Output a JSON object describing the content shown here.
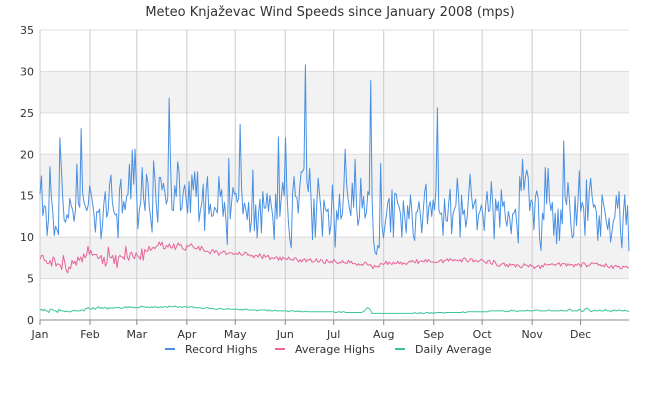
{
  "chart_data": {
    "type": "line",
    "title": "Meteo Knjaževac Wind Speeds since January 2008 (mps)",
    "xlabel": "",
    "ylabel": "",
    "x_ticks": [
      "Jan",
      "Feb",
      "Mar",
      "Apr",
      "May",
      "Jun",
      "Jul",
      "Aug",
      "Sep",
      "Oct",
      "Nov",
      "Dec"
    ],
    "x_tick_days": [
      1,
      32,
      61,
      92,
      122,
      153,
      183,
      214,
      245,
      275,
      306,
      336
    ],
    "xlim_days": [
      1,
      366
    ],
    "ylim": [
      0,
      35
    ],
    "y_ticks": [
      0,
      5,
      10,
      15,
      20,
      25,
      30,
      35
    ],
    "grid": true,
    "legend": "bottom",
    "series": [
      {
        "name": "Record Highs",
        "color": "#4a90e2",
        "values": [
          15.2,
          17.4,
          12.6,
          13.8,
          13.6,
          10.2,
          12.2,
          18.5,
          14.8,
          13.1,
          10.2,
          11.3,
          10.9,
          10.3,
          22.0,
          18.5,
          14.8,
          12.1,
          11.8,
          12.7,
          12.3,
          14.7,
          13.8,
          13.3,
          11.9,
          13.3,
          18.8,
          14.1,
          13.6,
          23.1,
          15.4,
          14.2,
          13.7,
          13.2,
          13.9,
          16.2,
          15.3,
          14.1,
          12.8,
          10.6,
          13.1,
          13.0,
          13.4,
          9.8,
          11.4,
          14.1,
          15.5,
          12.4,
          13.1,
          16.3,
          17.5,
          14.2,
          13.1,
          12.7,
          12.8,
          9.9,
          15.7,
          17.0,
          12.9,
          14.3,
          13.3,
          14.9,
          15.2,
          18.8,
          14.6,
          20.5,
          16.4,
          20.6,
          15.7,
          11.0,
          13.3,
          14.3,
          18.4,
          14.7,
          13.2,
          17.6,
          16.6,
          13.6,
          12.3,
          10.6,
          19.2,
          17.0,
          13.8,
          11.8,
          17.2,
          17.2,
          15.7,
          16.5,
          15.4,
          14.0,
          14.7,
          26.8,
          18.6,
          13.3,
          13.2,
          16.2,
          14.9,
          19.1,
          17.9,
          13.2,
          13.5,
          15.6,
          16.3,
          14.5,
          12.9,
          16.7,
          13.0,
          17.5,
          15.7,
          17.9,
          14.9,
          17.9,
          11.9,
          13.2,
          14.1,
          16.4,
          10.8,
          15.5,
          17.3,
          12.8,
          14.0,
          12.5,
          12.6,
          13.6,
          13.3,
          12.9,
          17.3,
          14.9,
          15.7,
          12.5,
          14.2,
          12.1,
          9.1,
          19.5,
          12.2,
          14.2,
          16.0,
          15.2,
          15.3,
          14.2,
          14.7,
          23.6,
          16.1,
          12.8,
          14.1,
          13.4,
          12.1,
          14.2,
          10.6,
          12.0,
          18.1,
          10.8,
          13.9,
          9.9,
          12.9,
          14.6,
          10.5,
          15.5,
          13.5,
          13.5,
          15.3,
          13.1,
          15.0,
          13.8,
          12.5,
          9.7,
          15.2,
          12.2,
          22.1,
          12.5,
          14.7,
          16.6,
          15.0,
          22.0,
          15.4,
          11.9,
          9.8,
          8.7,
          15.3,
          17.3,
          14.9,
          14.8,
          12.9,
          16.0,
          17.9,
          17.9,
          18.3,
          30.8,
          16.8,
          15.5,
          18.3,
          14.6,
          9.7,
          14.6,
          10.0,
          13.9,
          17.1,
          15.1,
          13.3,
          10.1,
          14.5,
          13.4,
          13.1,
          13.4,
          10.3,
          11.5,
          16.3,
          13.4,
          8.8,
          13.2,
          12.1,
          15.2,
          12.2,
          12.7,
          15.6,
          20.6,
          16.5,
          14.7,
          13.5,
          12.6,
          16.5,
          13.6,
          19.4,
          13.9,
          11.4,
          12.3,
          17.1,
          13.5,
          14.9,
          12.3,
          13.0,
          15.5,
          15.1,
          28.9,
          14.6,
          9.6,
          8.2,
          7.9,
          9.0,
          8.7,
          18.9,
          11.3,
          9.9,
          11.3,
          12.6,
          14.1,
          14.7,
          10.6,
          15.7,
          10.0,
          15.3,
          15.2,
          14.1,
          13.7,
          12.8,
          10.0,
          14.4,
          12.4,
          10.5,
          13.8,
          12.2,
          15.1,
          13.1,
          10.2,
          9.6,
          13.0,
          13.1,
          14.3,
          12.7,
          10.5,
          13.1,
          15.4,
          16.4,
          11.6,
          13.7,
          14.3,
          12.5,
          14.5,
          13.3,
          15.8,
          25.6,
          13.3,
          12.8,
          12.9,
          10.2,
          14.6,
          12.1,
          11.9,
          14.2,
          15.8,
          10.4,
          12.8,
          13.4,
          13.8,
          17.1,
          14.8,
          10.0,
          15.1,
          12.7,
          13.3,
          11.2,
          12.4,
          15.0,
          17.6,
          15.1,
          13.4,
          14.1,
          14.6,
          10.9,
          12.7,
          13.1,
          13.9,
          12.8,
          10.8,
          13.8,
          15.5,
          13.1,
          13.2,
          16.7,
          14.0,
          9.8,
          14.6,
          13.2,
          14.3,
          11.2,
          15.7,
          13.7,
          14.3,
          12.2,
          11.3,
          13.1,
          12.2,
          10.4,
          12.8,
          12.9,
          13.4,
          11.4,
          9.3,
          17.3,
          15.6,
          19.4,
          15.7,
          17.2,
          18.1,
          17.2,
          13.2,
          14.5,
          14.2,
          10.9,
          14.8,
          15.6,
          14.7,
          9.8,
          8.4,
          12.9,
          12.1,
          18.4,
          14.0,
          18.3,
          14.5,
          13.2,
          14.2,
          10.2,
          12.9,
          9.2,
          13.4,
          9.6,
          13.3,
          11.6,
          21.6,
          14.8,
          13.9,
          16.6,
          14.5,
          11.6,
          9.9,
          10.2,
          14.9,
          11.4,
          14.2,
          18.0,
          13.1,
          14.2,
          13.6,
          10.2,
          16.9,
          12.0,
          15.5,
          17.1,
          14.9,
          13.6,
          13.9,
          13.0,
          9.6,
          12.6,
          10.1,
          15.1,
          14.1,
          13.1,
          11.9,
          10.9,
          12.3,
          9.4,
          10.6,
          12.0,
          12.4,
          15.0,
          13.5,
          15.5,
          10.7,
          8.7,
          12.7,
          15.1,
          11.5,
          13.8,
          8.3
        ]
      },
      {
        "name": "Average Highs",
        "color": "#e8649a",
        "values": [
          7.3,
          7.8,
          7.8,
          7.2,
          7.2,
          6.8,
          6.8,
          7.2,
          6.5,
          7.6,
          7.4,
          6.5,
          6.8,
          6.7,
          6.6,
          6.1,
          7.8,
          7.0,
          6.0,
          5.7,
          6.4,
          6.2,
          7.2,
          6.8,
          7.1,
          6.6,
          7.6,
          7.2,
          7.6,
          7.0,
          8.0,
          7.5,
          7.8,
          8.9,
          7.9,
          8.4,
          7.8,
          7.9,
          7.9,
          7.9,
          7.4,
          7.5,
          7.8,
          6.8,
          7.6,
          6.5,
          6.9,
          8.8,
          7.6,
          7.5,
          7.8,
          6.8,
          7.8,
          6.3,
          7.6,
          7.8,
          7.6,
          7.6,
          7.3,
          8.9,
          7.6,
          7.2,
          8.0,
          8.2,
          7.6,
          7.4,
          8.1,
          7.8,
          7.6,
          7.3,
          8.6,
          7.2,
          8.5,
          8.3,
          8.3,
          8.9,
          8.4,
          8.6,
          8.8,
          8.6,
          8.9,
          9.0,
          9.4,
          9.0,
          9.4,
          8.6,
          8.6,
          9.0,
          8.8,
          9.2,
          8.7,
          8.7,
          9.2,
          8.5,
          8.9,
          9.3,
          9.0,
          9.1,
          8.6,
          8.5,
          8.4,
          9.0,
          8.9,
          9.0,
          9.2,
          8.9,
          8.7,
          8.6,
          8.6,
          8.9,
          8.4,
          8.9,
          8.6,
          8.3,
          8.3,
          8.3,
          8.2,
          8.0,
          8.4,
          8.5,
          8.1,
          8.4,
          8.2,
          7.8,
          8.1,
          8.1,
          8.3,
          8.3,
          7.9,
          8.0,
          8.1,
          8.1,
          8.1,
          7.9,
          8.0,
          8.0,
          7.9,
          8.2,
          7.9,
          7.8,
          7.9,
          8.2,
          8.1,
          7.8,
          7.9,
          7.7,
          7.8,
          7.5,
          7.8,
          7.8,
          7.6,
          8.0,
          7.7,
          7.4,
          7.9,
          7.6,
          7.7,
          7.8,
          7.3,
          7.5,
          7.5,
          7.4,
          7.6,
          7.6,
          7.2,
          7.6,
          7.2,
          7.6,
          7.4,
          7.4,
          7.3,
          7.6,
          7.3,
          7.3,
          7.2,
          7.5,
          7.5,
          7.2,
          7.0,
          7.3,
          7.0,
          7.3,
          7.4,
          7.0,
          7.3,
          7.2,
          7.4,
          7.0,
          7.0,
          7.1,
          7.4,
          7.0,
          7.0,
          7.3,
          7.2,
          6.9,
          6.8,
          7.3,
          7.1,
          6.9,
          7.1,
          6.9,
          7.3,
          7.1,
          6.9,
          6.8,
          7.0,
          6.9,
          7.2,
          6.9,
          6.9,
          6.8,
          7.2,
          6.9,
          7.1,
          6.8,
          6.8,
          6.8,
          6.6,
          6.8,
          6.6,
          6.7,
          6.6,
          6.9,
          7.0,
          6.7,
          6.6,
          6.7,
          6.5,
          6.2,
          6.6,
          6.4,
          6.5,
          6.4,
          6.8,
          6.8,
          6.7,
          6.8,
          7.1,
          6.7,
          7.0,
          6.8,
          6.7,
          7.0,
          6.8,
          6.8,
          7.1,
          6.8,
          7.0,
          6.7,
          6.9,
          6.8,
          6.7,
          6.9,
          7.1,
          7.0,
          7.2,
          7.0,
          6.9,
          7.3,
          6.8,
          7.1,
          7.1,
          7.1,
          7.0,
          7.3,
          7.0,
          7.3,
          7.1,
          7.0,
          7.0,
          7.0,
          6.9,
          7.0,
          7.0,
          7.2,
          7.3,
          6.9,
          7.2,
          7.2,
          7.4,
          7.1,
          7.4,
          7.3,
          7.1,
          7.3,
          7.2,
          7.2,
          7.1,
          7.3,
          7.0,
          7.4,
          7.5,
          7.3,
          7.0,
          7.1,
          7.4,
          7.4,
          7.0,
          7.2,
          7.2,
          7.0,
          7.1,
          7.3,
          7.3,
          7.1,
          7.0,
          6.8,
          7.2,
          7.2,
          6.8,
          6.7,
          7.2,
          7.0,
          6.6,
          6.5,
          6.5,
          6.7,
          6.8,
          6.9,
          6.5,
          6.7,
          6.4,
          6.8,
          6.6,
          6.7,
          6.7,
          6.4,
          6.7,
          6.6,
          6.4,
          6.3,
          6.5,
          6.8,
          6.6,
          6.6,
          6.4,
          6.7,
          6.5,
          6.5,
          6.2,
          6.4,
          6.5,
          6.6,
          6.2,
          6.6,
          6.4,
          6.8,
          6.7,
          6.6,
          6.7,
          6.7,
          6.8,
          6.7,
          6.6,
          6.7,
          6.8,
          6.9,
          6.5,
          6.8,
          6.8,
          6.8,
          6.5,
          6.8,
          6.6,
          6.7,
          6.7,
          6.4,
          6.7,
          6.6,
          6.8,
          6.7,
          6.4,
          6.9,
          6.9,
          6.7,
          6.4,
          6.6,
          6.6,
          6.9,
          6.9,
          6.8,
          6.8,
          6.9,
          6.6,
          6.7,
          6.5,
          6.6,
          6.4,
          6.8,
          6.5,
          6.3,
          6.4,
          6.6,
          6.2,
          6.5,
          6.6,
          6.4,
          6.5,
          6.2,
          6.2,
          6.5,
          6.4,
          6.5,
          6.3,
          6.3
        ]
      },
      {
        "name": "Daily Average",
        "color": "#3cc4a0",
        "values": [
          1.2,
          1.3,
          1.1,
          1.3,
          1.1,
          1.1,
          0.9,
          1.3,
          1.3,
          1.2,
          1.1,
          1.1,
          0.9,
          1.3,
          1.1,
          1.1,
          1.1,
          1.0,
          1.1,
          1.0,
          1.0,
          1.0,
          1.1,
          1.2,
          1.1,
          1.1,
          1.1,
          1.1,
          1.2,
          1.2,
          1.1,
          1.4,
          1.4,
          1.5,
          1.3,
          1.3,
          1.5,
          1.3,
          1.4,
          1.5,
          1.6,
          1.4,
          1.5,
          1.4,
          1.5,
          1.5,
          1.3,
          1.5,
          1.4,
          1.5,
          1.4,
          1.5,
          1.5,
          1.5,
          1.5,
          1.4,
          1.4,
          1.5,
          1.6,
          1.5,
          1.6,
          1.5,
          1.6,
          1.5,
          1.5,
          1.5,
          1.5,
          1.5,
          1.5,
          1.7,
          1.6,
          1.6,
          1.5,
          1.6,
          1.5,
          1.5,
          1.6,
          1.5,
          1.6,
          1.6,
          1.5,
          1.5,
          1.6,
          1.5,
          1.6,
          1.6,
          1.6,
          1.5,
          1.7,
          1.6,
          1.6,
          1.6,
          1.7,
          1.6,
          1.5,
          1.6,
          1.6,
          1.5,
          1.6,
          1.6,
          1.6,
          1.5,
          1.6,
          1.6,
          1.6,
          1.5,
          1.5,
          1.5,
          1.5,
          1.5,
          1.4,
          1.4,
          1.4,
          1.5,
          1.5,
          1.4,
          1.4,
          1.4,
          1.4,
          1.3,
          1.3,
          1.3,
          1.4,
          1.4,
          1.3,
          1.3,
          1.3,
          1.3,
          1.4,
          1.3,
          1.3,
          1.3,
          1.3,
          1.3,
          1.3,
          1.3,
          1.2,
          1.3,
          1.2,
          1.3,
          1.3,
          1.3,
          1.2,
          1.2,
          1.2,
          1.2,
          1.2,
          1.2,
          1.1,
          1.2,
          1.2,
          1.2,
          1.2,
          1.2,
          1.2,
          1.1,
          1.2,
          1.1,
          1.1,
          1.1,
          1.2,
          1.1,
          1.1,
          1.1,
          1.1,
          1.1,
          1.1,
          1.1,
          1.1,
          1.0,
          1.1,
          1.1,
          1.1,
          1.1,
          1.0,
          1.1,
          1.0,
          1.1,
          1.0,
          1.0,
          1.0,
          1.1,
          1.0,
          1.0,
          1.0,
          1.0,
          1.0,
          1.0,
          1.0,
          1.0,
          1.0,
          1.0,
          1.0,
          1.0,
          1.0,
          1.0,
          1.0,
          1.0,
          1.0,
          1.0,
          1.0,
          0.9,
          0.9,
          1.0,
          1.0,
          0.9,
          1.0,
          1.0,
          0.9,
          0.9,
          0.9,
          0.9,
          0.9,
          0.9,
          0.9,
          0.9,
          0.9,
          0.9,
          0.9,
          0.9,
          1.0,
          1.1,
          1.3,
          1.5,
          1.4,
          1.2,
          0.8,
          0.8,
          0.8,
          0.8,
          0.8,
          0.8,
          0.8,
          0.8,
          0.8,
          0.8,
          0.8,
          0.8,
          0.8,
          0.8,
          0.8,
          0.8,
          0.8,
          0.8,
          0.8,
          0.8,
          0.8,
          0.8,
          0.8,
          0.8,
          0.8,
          0.8,
          0.8,
          0.8,
          0.8,
          0.9,
          0.8,
          0.8,
          0.8,
          0.9,
          0.8,
          0.8,
          0.8,
          0.9,
          0.9,
          0.8,
          0.9,
          0.8,
          0.9,
          0.8,
          0.9,
          0.9,
          0.9,
          0.9,
          0.9,
          0.8,
          0.9,
          0.9,
          0.9,
          0.9,
          0.9,
          0.9,
          0.9,
          0.9,
          0.9,
          0.9,
          0.9,
          0.9,
          1.0,
          0.9,
          0.9,
          1.0,
          1.0,
          1.0,
          1.0,
          1.0,
          1.0,
          1.0,
          1.0,
          1.0,
          1.0,
          1.0,
          1.0,
          1.0,
          1.0,
          1.0,
          1.1,
          1.1,
          1.1,
          1.1,
          1.1,
          1.1,
          1.1,
          1.1,
          1.1,
          1.1,
          1.1,
          1.0,
          1.1,
          1.0,
          1.1,
          1.2,
          1.1,
          1.1,
          1.1,
          1.0,
          1.1,
          1.1,
          1.1,
          1.1,
          1.1,
          1.1,
          1.2,
          1.1,
          1.1,
          1.1,
          1.1,
          1.2,
          1.2,
          1.2,
          1.1,
          1.1,
          1.1,
          1.1,
          1.1,
          1.1,
          1.2,
          1.2,
          1.1,
          1.1,
          1.1,
          1.1,
          1.1,
          1.1,
          1.1,
          1.2,
          1.1,
          1.1,
          1.1,
          1.1,
          1.3,
          1.3,
          1.1,
          1.1,
          1.1,
          1.1,
          1.1,
          1.3,
          1.2,
          1.0,
          1.1,
          1.3,
          1.4,
          1.4,
          1.2,
          1.0,
          1.1,
          1.1,
          1.2,
          1.1,
          1.1,
          1.2,
          1.1,
          1.1,
          1.1,
          1.3,
          1.1,
          1.1,
          1.1,
          1.0,
          1.2,
          1.1,
          1.2,
          1.1,
          1.2,
          1.2,
          1.1,
          1.1,
          1.2,
          1.1,
          1.1,
          1.0
        ]
      }
    ]
  }
}
